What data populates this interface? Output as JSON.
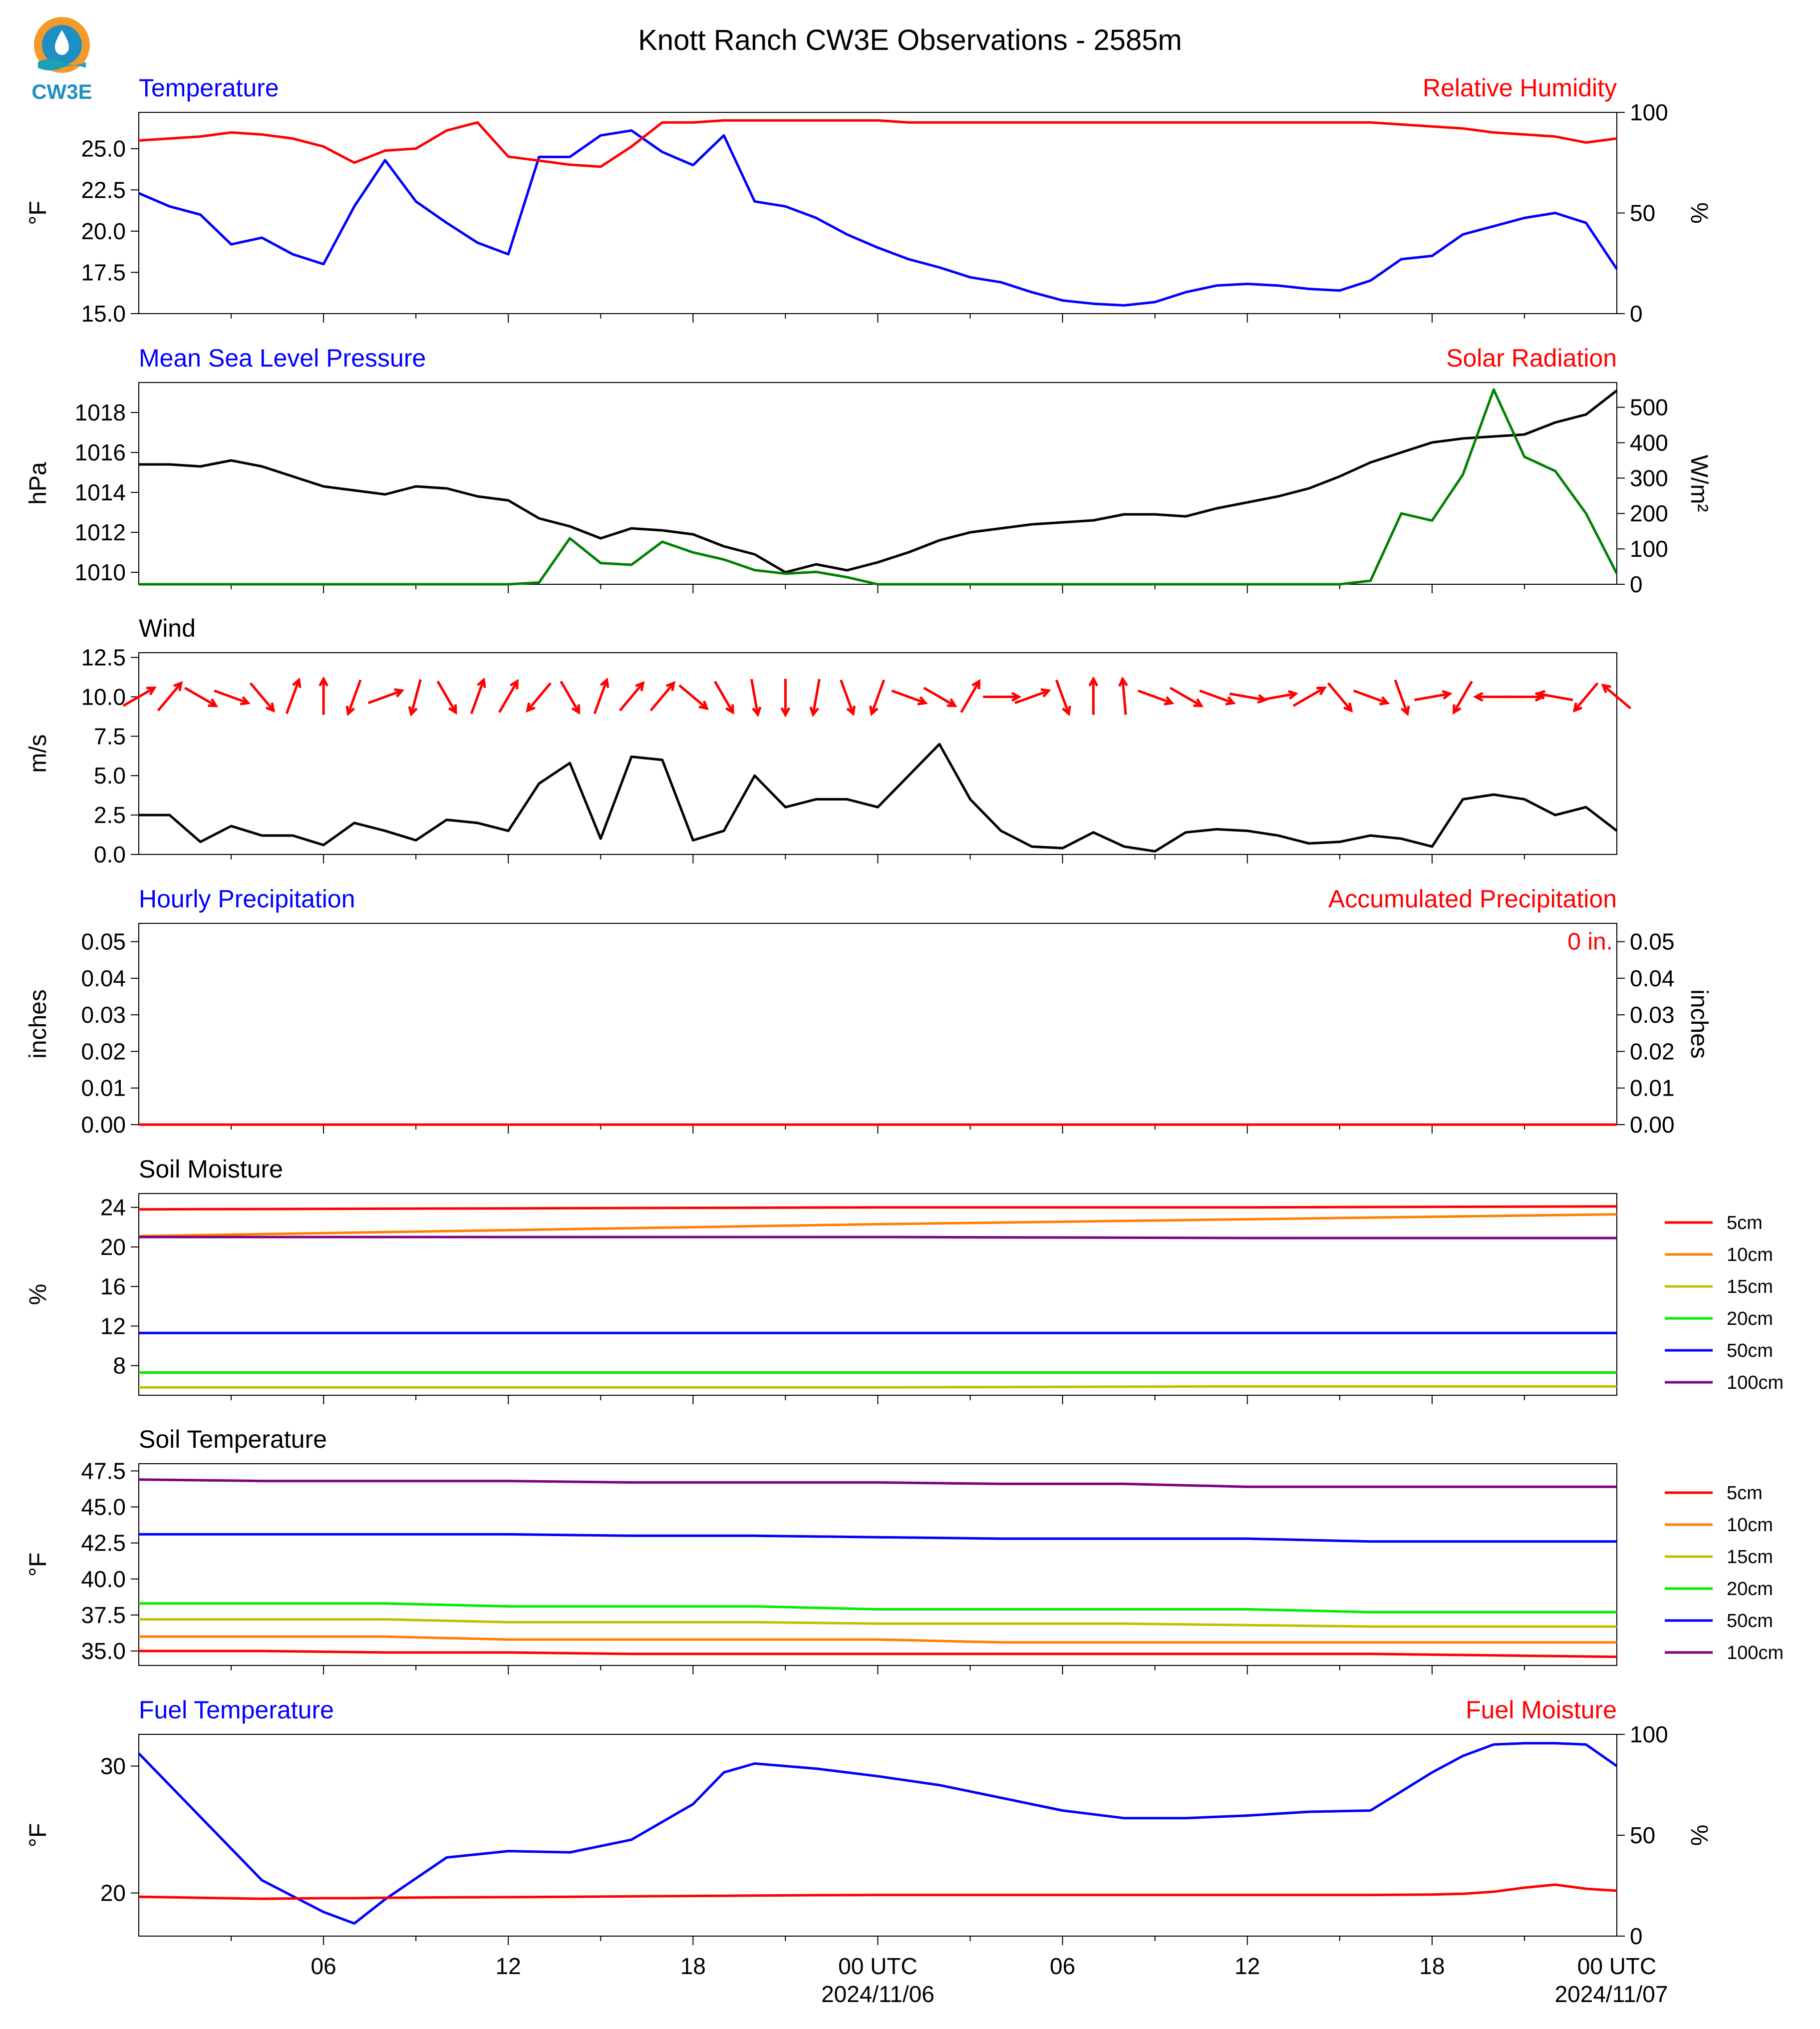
{
  "title": "Knott Ranch CW3E Observations - 2585m",
  "logo": {
    "text": "CW3E",
    "colors": {
      "orange": "#f39a2b",
      "blue": "#1f8ec2",
      "teal": "#1e9fb2"
    }
  },
  "colors": {
    "blue": "#0000ff",
    "red": "#ff0000",
    "green": "#008000",
    "black": "#000000"
  },
  "x_axis": {
    "tick_labels": [
      "06",
      "12",
      "18",
      "00 UTC",
      "06",
      "12",
      "18",
      "00 UTC"
    ],
    "date_labels": [
      "2024/11/06",
      "2024/11/07"
    ]
  },
  "chart_data": [
    {
      "type": "line",
      "left_title": "Temperature",
      "right_title": "Relative Humidity",
      "ylabel": "°F",
      "ylabel_right": "%",
      "ylim": [
        15.0,
        27.2
      ],
      "yticks": [
        "15.0",
        "17.5",
        "20.0",
        "22.5",
        "25.0"
      ],
      "ylim_right": [
        0,
        100
      ],
      "yticks_right": [
        "0",
        "50",
        "100"
      ],
      "x": [
        0,
        1,
        2,
        3,
        4,
        5,
        6,
        7,
        8,
        9,
        10,
        11,
        12,
        13,
        14,
        15,
        16,
        17,
        18,
        19,
        20,
        21,
        22,
        23,
        24,
        25,
        26,
        27,
        28,
        29,
        30,
        31,
        32,
        33,
        34,
        35,
        36,
        37,
        38,
        39,
        40,
        41,
        42,
        43,
        44,
        45,
        46,
        47,
        48
      ],
      "series": [
        {
          "name": "Temperature",
          "color": "#0000ff",
          "axis": "left",
          "values": [
            22.3,
            21.5,
            21.0,
            19.2,
            19.6,
            18.6,
            18.0,
            21.5,
            24.3,
            21.8,
            20.5,
            19.3,
            18.6,
            24.5,
            24.5,
            25.8,
            26.1,
            24.8,
            24.0,
            25.8,
            21.8,
            21.5,
            20.8,
            19.8,
            19.0,
            18.3,
            17.8,
            17.2,
            16.9,
            16.3,
            15.8,
            15.6,
            15.5,
            15.7,
            16.3,
            16.7,
            16.8,
            16.7,
            16.5,
            16.4,
            17.0,
            18.3,
            18.5,
            19.8,
            20.3,
            20.8,
            21.1,
            20.5,
            17.7
          ]
        },
        {
          "name": "Relative Humidity",
          "color": "#ff0000",
          "axis": "right",
          "values": [
            86,
            87,
            88,
            90,
            89,
            87,
            83,
            75,
            81,
            82,
            91,
            95,
            78,
            76,
            74,
            73,
            83,
            95,
            95,
            96,
            96,
            96,
            96,
            96,
            96,
            95,
            95,
            95,
            95,
            95,
            95,
            95,
            95,
            95,
            95,
            95,
            95,
            95,
            95,
            95,
            95,
            94,
            93,
            92,
            90,
            89,
            88,
            85,
            87
          ]
        }
      ]
    },
    {
      "type": "line",
      "left_title": "Mean Sea Level Pressure",
      "right_title": "Solar Radiation",
      "ylabel": "hPa",
      "ylabel_right": "W/m²",
      "ylim": [
        1009.4,
        1019.5
      ],
      "yticks": [
        "1010",
        "1012",
        "1014",
        "1016",
        "1018"
      ],
      "ylim_right": [
        0,
        570
      ],
      "yticks_right": [
        "0",
        "100",
        "200",
        "300",
        "400",
        "500"
      ],
      "x": [
        0,
        1,
        2,
        3,
        4,
        5,
        6,
        7,
        8,
        9,
        10,
        11,
        12,
        13,
        14,
        15,
        16,
        17,
        18,
        19,
        20,
        21,
        22,
        23,
        24,
        25,
        26,
        27,
        28,
        29,
        30,
        31,
        32,
        33,
        34,
        35,
        36,
        37,
        38,
        39,
        40,
        41,
        42,
        43,
        44,
        45,
        46,
        47,
        48
      ],
      "series": [
        {
          "name": "Mean Sea Level Pressure",
          "color": "#000000",
          "axis": "left",
          "values": [
            1015.4,
            1015.4,
            1015.3,
            1015.6,
            1015.3,
            1014.8,
            1014.3,
            1014.1,
            1013.9,
            1014.3,
            1014.2,
            1013.8,
            1013.6,
            1012.7,
            1012.3,
            1011.7,
            1012.2,
            1012.1,
            1011.9,
            1011.3,
            1010.9,
            1010.0,
            1010.4,
            1010.1,
            1010.5,
            1011.0,
            1011.6,
            1012.0,
            1012.2,
            1012.4,
            1012.5,
            1012.6,
            1012.9,
            1012.9,
            1012.8,
            1013.2,
            1013.5,
            1013.8,
            1014.2,
            1014.8,
            1015.5,
            1016.0,
            1016.5,
            1016.7,
            1016.8,
            1016.9,
            1017.5,
            1017.9,
            1019.1
          ]
        },
        {
          "name": "Solar Radiation",
          "color": "#008000",
          "axis": "right",
          "values": [
            0,
            0,
            0,
            0,
            0,
            0,
            0,
            0,
            0,
            0,
            0,
            0,
            0,
            5,
            130,
            60,
            55,
            120,
            90,
            70,
            40,
            30,
            35,
            20,
            0,
            0,
            0,
            0,
            0,
            0,
            0,
            0,
            0,
            0,
            0,
            0,
            0,
            0,
            0,
            0,
            10,
            200,
            180,
            310,
            550,
            360,
            320,
            200,
            30
          ]
        }
      ]
    },
    {
      "type": "line",
      "left_title": "Wind",
      "ylabel": "m/s",
      "ylim": [
        0.0,
        12.8
      ],
      "yticks": [
        "0.0",
        "2.5",
        "5.0",
        "7.5",
        "10.0",
        "12.5"
      ],
      "x": [
        0,
        1,
        2,
        3,
        4,
        5,
        6,
        7,
        8,
        9,
        10,
        11,
        12,
        13,
        14,
        15,
        16,
        17,
        18,
        19,
        20,
        21,
        22,
        23,
        24,
        25,
        26,
        27,
        28,
        29,
        30,
        31,
        32,
        33,
        34,
        35,
        36,
        37,
        38,
        39,
        40,
        41,
        42,
        43,
        44,
        45,
        46,
        47,
        48
      ],
      "series": [
        {
          "name": "Wind Speed",
          "color": "#000000",
          "axis": "left",
          "values": [
            2.5,
            2.5,
            0.8,
            1.8,
            1.2,
            1.2,
            0.6,
            2.0,
            1.5,
            0.9,
            2.2,
            2.0,
            1.5,
            4.5,
            5.8,
            1.0,
            6.2,
            6.0,
            0.9,
            1.5,
            5.0,
            3.0,
            3.5,
            3.5,
            3.0,
            5.0,
            7.0,
            3.5,
            1.5,
            0.5,
            0.4,
            1.4,
            0.5,
            0.2,
            1.4,
            1.6,
            1.5,
            1.2,
            0.7,
            0.8,
            1.2,
            1.0,
            0.5,
            3.5,
            3.8,
            3.5,
            2.5,
            3.0,
            1.5
          ]
        }
      ],
      "wind_direction_deg": [
        240,
        220,
        300,
        290,
        320,
        200,
        180,
        20,
        250,
        15,
        330,
        200,
        210,
        40,
        330,
        200,
        220,
        220,
        310,
        330,
        350,
        0,
        10,
        340,
        20,
        290,
        300,
        210,
        270,
        250,
        340,
        180,
        175,
        290,
        300,
        290,
        280,
        260,
        240,
        320,
        290,
        340,
        260,
        30,
        90,
        270,
        100,
        40,
        130
      ]
    },
    {
      "type": "bar",
      "left_title": "Hourly Precipitation",
      "right_title": "Accumulated Precipitation",
      "annotation": "0 in.",
      "ylabel": "inches",
      "ylabel_right": "inches",
      "ylim": [
        0.0,
        0.055
      ],
      "yticks": [
        "0.00",
        "0.01",
        "0.02",
        "0.03",
        "0.04",
        "0.05"
      ],
      "yticks_right": [
        "0.00",
        "0.01",
        "0.02",
        "0.03",
        "0.04",
        "0.05"
      ],
      "x": [
        0,
        48
      ],
      "series": [
        {
          "name": "Hourly Precipitation",
          "color": "#0000ff",
          "axis": "left",
          "values": [
            0,
            0
          ]
        },
        {
          "name": "Accumulated Precipitation",
          "color": "#ff0000",
          "axis": "left",
          "values": [
            0,
            0
          ]
        }
      ]
    },
    {
      "type": "line",
      "left_title": "Soil Moisture",
      "ylabel": "%",
      "ylim": [
        5.0,
        25.4
      ],
      "yticks": [
        "8",
        "12",
        "16",
        "20",
        "24"
      ],
      "legend": [
        "5cm",
        "10cm",
        "15cm",
        "20cm",
        "50cm",
        "100cm"
      ],
      "x": [
        0,
        12,
        24,
        36,
        48
      ],
      "series": [
        {
          "name": "5cm",
          "color": "#ff0000",
          "axis": "left",
          "values": [
            23.8,
            23.9,
            24.0,
            24.0,
            24.1
          ]
        },
        {
          "name": "10cm",
          "color": "#ff8000",
          "axis": "left",
          "values": [
            21.1,
            21.7,
            22.3,
            22.8,
            23.3
          ]
        },
        {
          "name": "15cm",
          "color": "#c0c000",
          "axis": "left",
          "values": [
            5.8,
            5.8,
            5.8,
            5.9,
            5.9
          ]
        },
        {
          "name": "20cm",
          "color": "#00ee00",
          "axis": "left",
          "values": [
            7.3,
            7.3,
            7.3,
            7.3,
            7.3
          ]
        },
        {
          "name": "50cm",
          "color": "#0000ff",
          "axis": "left",
          "values": [
            11.3,
            11.3,
            11.3,
            11.3,
            11.3
          ]
        },
        {
          "name": "100cm",
          "color": "#800080",
          "axis": "left",
          "values": [
            21.0,
            21.0,
            21.0,
            20.9,
            20.9
          ]
        }
      ]
    },
    {
      "type": "line",
      "left_title": "Soil Temperature",
      "ylabel": "°F",
      "ylim": [
        34.0,
        48.0
      ],
      "yticks": [
        "35.0",
        "37.5",
        "40.0",
        "42.5",
        "45.0",
        "47.5"
      ],
      "legend": [
        "5cm",
        "10cm",
        "15cm",
        "20cm",
        "50cm",
        "100cm"
      ],
      "x": [
        0,
        4,
        8,
        12,
        16,
        20,
        24,
        28,
        32,
        36,
        40,
        44,
        48
      ],
      "series": [
        {
          "name": "5cm",
          "color": "#ff0000",
          "axis": "left",
          "values": [
            35.0,
            35.0,
            34.9,
            34.9,
            34.8,
            34.8,
            34.8,
            34.8,
            34.8,
            34.8,
            34.8,
            34.7,
            34.6
          ]
        },
        {
          "name": "10cm",
          "color": "#ff8000",
          "axis": "left",
          "values": [
            36.0,
            36.0,
            36.0,
            35.8,
            35.8,
            35.8,
            35.8,
            35.6,
            35.6,
            35.6,
            35.6,
            35.6,
            35.6
          ]
        },
        {
          "name": "15cm",
          "color": "#c0c000",
          "axis": "left",
          "values": [
            37.2,
            37.2,
            37.2,
            37.0,
            37.0,
            37.0,
            36.9,
            36.9,
            36.9,
            36.8,
            36.7,
            36.7,
            36.7
          ]
        },
        {
          "name": "20cm",
          "color": "#00ee00",
          "axis": "left",
          "values": [
            38.3,
            38.3,
            38.3,
            38.1,
            38.1,
            38.1,
            37.9,
            37.9,
            37.9,
            37.9,
            37.7,
            37.7,
            37.7
          ]
        },
        {
          "name": "50cm",
          "color": "#0000ff",
          "axis": "left",
          "values": [
            43.1,
            43.1,
            43.1,
            43.1,
            43.0,
            43.0,
            42.9,
            42.8,
            42.8,
            42.8,
            42.6,
            42.6,
            42.6
          ]
        },
        {
          "name": "100cm",
          "color": "#800080",
          "axis": "left",
          "values": [
            46.9,
            46.8,
            46.8,
            46.8,
            46.7,
            46.7,
            46.7,
            46.6,
            46.6,
            46.4,
            46.4,
            46.4,
            46.4
          ]
        }
      ]
    },
    {
      "type": "line",
      "left_title": "Fuel Temperature",
      "right_title": "Fuel Moisture",
      "ylabel": "°F",
      "ylabel_right": "%",
      "ylim": [
        16.6,
        32.5
      ],
      "yticks": [
        "20",
        "30"
      ],
      "ylim_right": [
        0,
        100
      ],
      "yticks_right": [
        "0",
        "50",
        "100"
      ],
      "x": [
        0,
        2,
        4,
        6,
        7,
        8,
        10,
        12,
        14,
        16,
        18,
        19,
        20,
        22,
        24,
        26,
        28,
        30,
        32,
        34,
        36,
        38,
        40,
        42,
        43,
        44,
        45,
        46,
        47,
        48
      ],
      "series": [
        {
          "name": "Fuel Temperature",
          "color": "#0000ff",
          "axis": "left",
          "values": [
            31.0,
            26.0,
            21.0,
            18.5,
            17.6,
            19.5,
            22.8,
            23.3,
            23.2,
            24.2,
            27.0,
            29.5,
            30.2,
            29.8,
            29.2,
            28.5,
            27.5,
            26.5,
            25.9,
            25.9,
            26.1,
            26.4,
            26.5,
            29.5,
            30.8,
            31.7,
            31.8,
            31.8,
            31.7,
            30.0
          ]
        },
        {
          "name": "Fuel Moisture",
          "color": "#ff0000",
          "axis": "right",
          "values": [
            19.5,
            19.0,
            18.5,
            18.8,
            18.8,
            19.0,
            19.2,
            19.3,
            19.5,
            19.7,
            19.9,
            20.0,
            20.1,
            20.3,
            20.4,
            20.4,
            20.4,
            20.4,
            20.4,
            20.4,
            20.4,
            20.4,
            20.4,
            20.6,
            21.0,
            22.0,
            24.0,
            25.5,
            23.5,
            22.5
          ]
        }
      ]
    }
  ]
}
